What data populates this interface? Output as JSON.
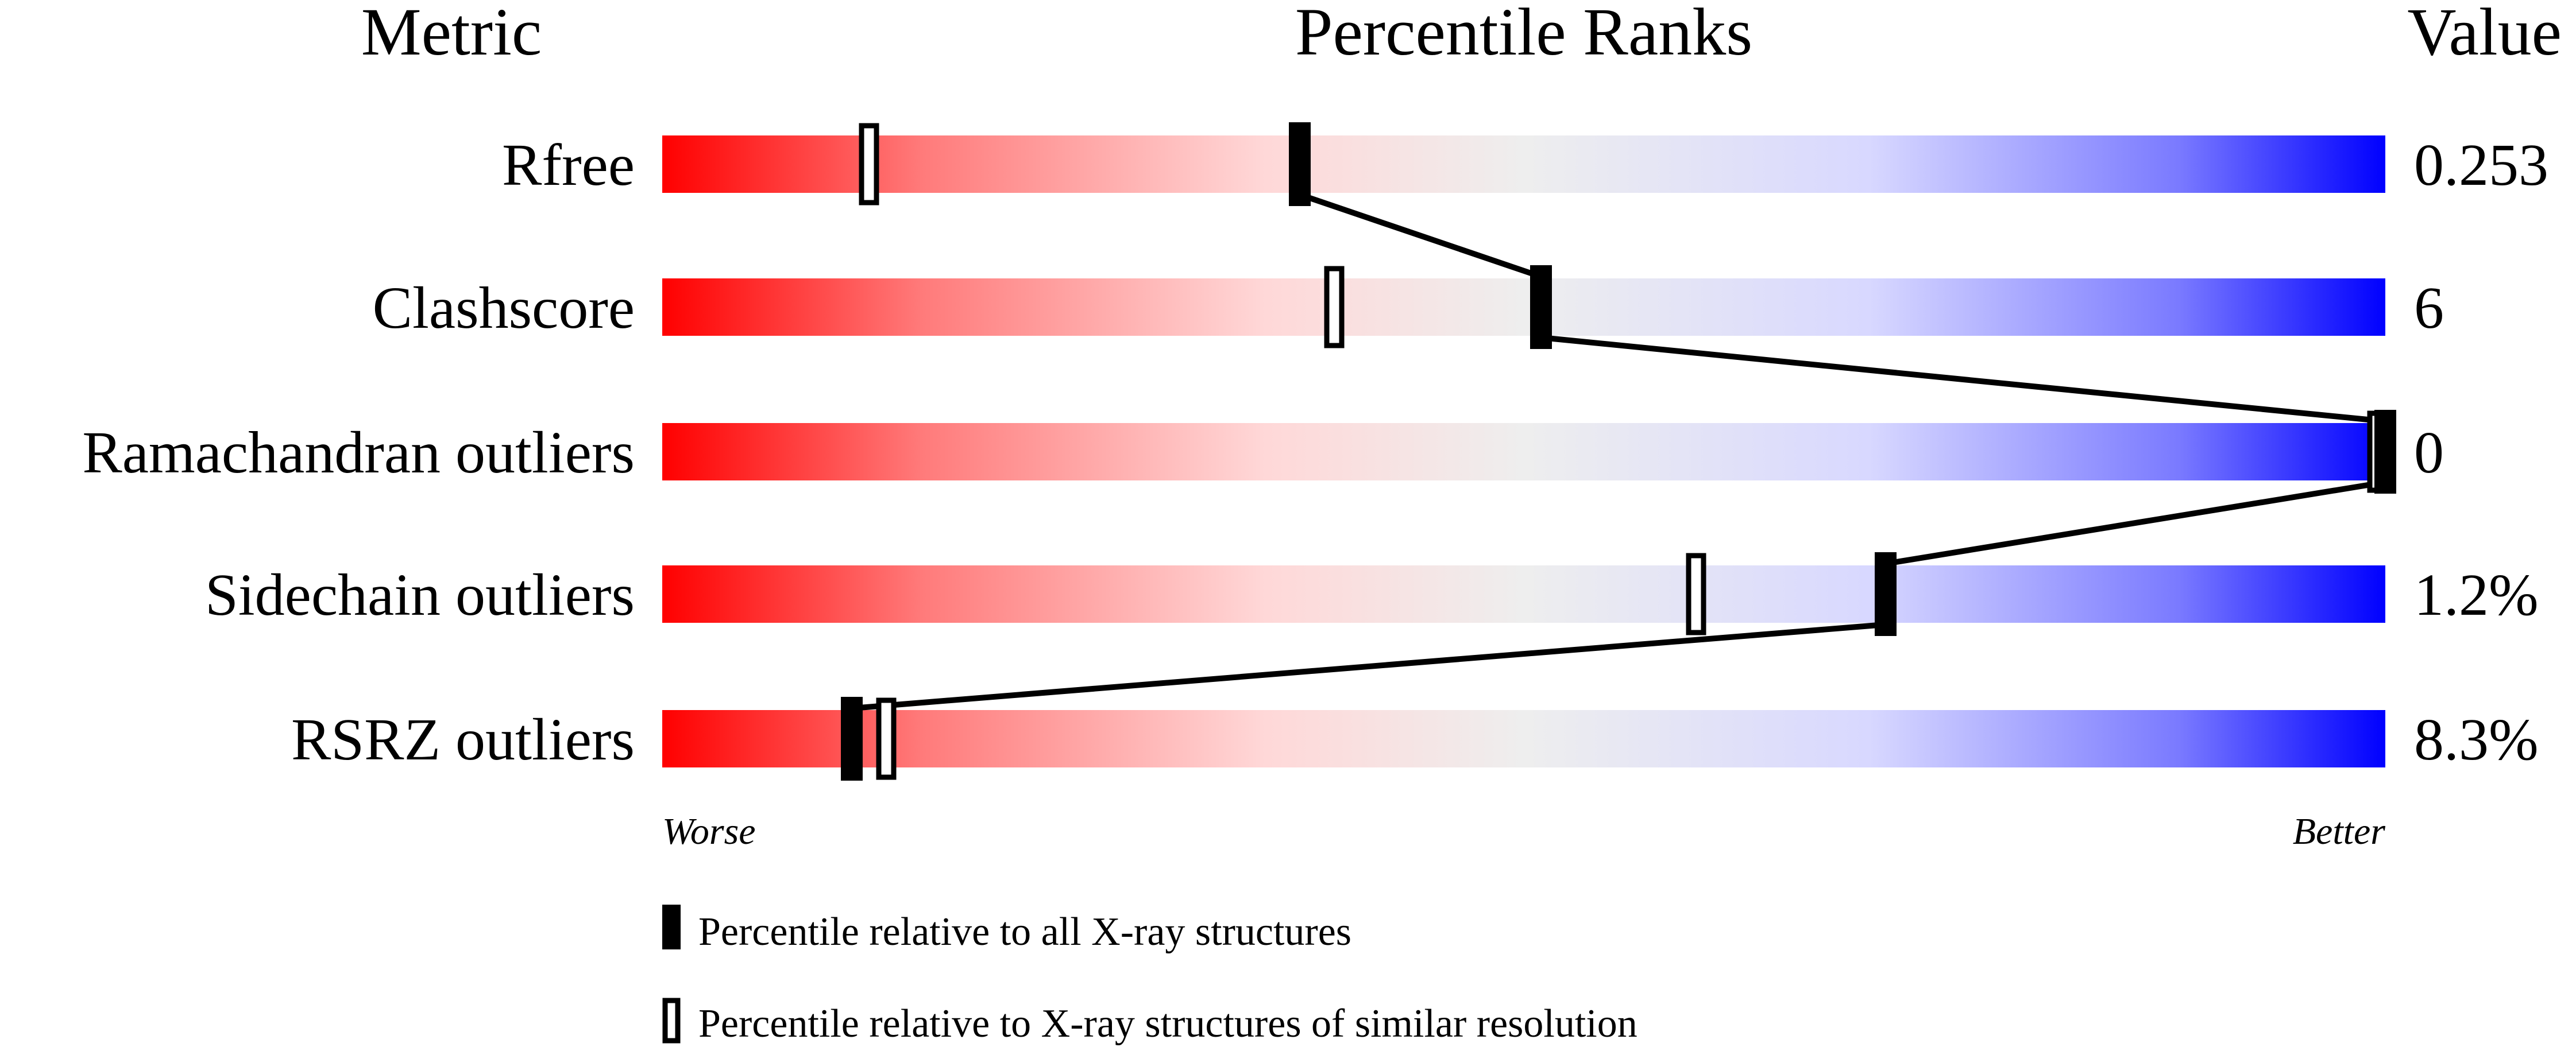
{
  "chart_data": {
    "type": "percentile-bar",
    "headers": {
      "metric": "Metric",
      "percentile": "Percentile Ranks",
      "value": "Value"
    },
    "xlim": [
      0,
      100
    ],
    "axis_labels": {
      "left": "Worse",
      "right": "Better"
    },
    "rows": [
      {
        "metric": "Rfree",
        "value": "0.253",
        "percentile_all": 37,
        "percentile_similar": 12
      },
      {
        "metric": "Clashscore",
        "value": "6",
        "percentile_all": 51,
        "percentile_similar": 39
      },
      {
        "metric": "Ramachandran outliers",
        "value": "0",
        "percentile_all": 100,
        "percentile_similar": 100
      },
      {
        "metric": "Sidechain outliers",
        "value": "1.2%",
        "percentile_all": 71,
        "percentile_similar": 60
      },
      {
        "metric": "RSRZ outliers",
        "value": "8.3%",
        "percentile_all": 11,
        "percentile_similar": 13
      }
    ],
    "legend": {
      "all": "Percentile relative to all X-ray structures",
      "similar": "Percentile relative to X-ray structures of similar resolution"
    },
    "colors": {
      "worse": "#ff0000",
      "middle": "#eeeeee",
      "better": "#0000ff",
      "marker": "#000000"
    }
  }
}
